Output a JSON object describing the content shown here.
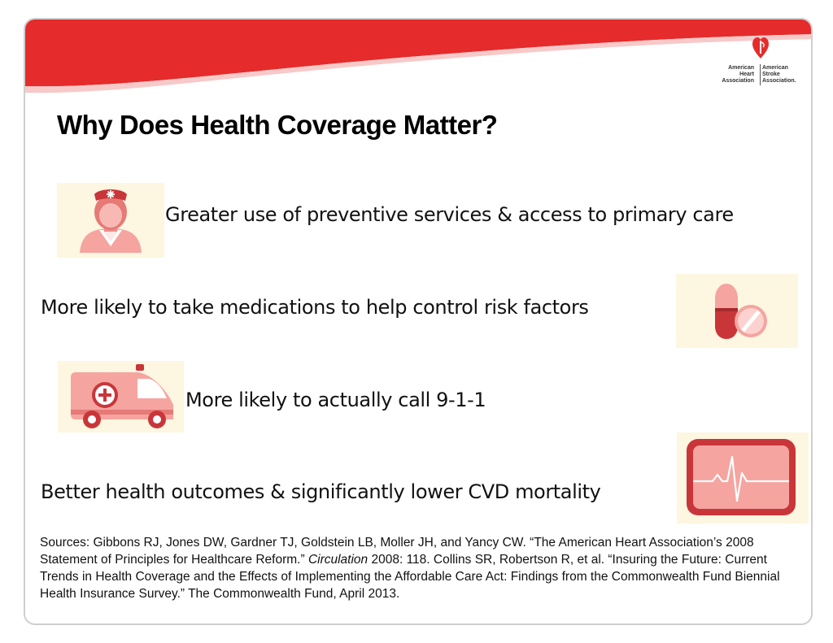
{
  "logo": {
    "left_lines": [
      "American",
      "Heart",
      "Association"
    ],
    "right_lines": [
      "American",
      "Stroke",
      "Association."
    ]
  },
  "title": "Why Does Health Coverage Matter?",
  "bullets": [
    {
      "text": "Greater use of preventive services & access to primary care",
      "icon": "nurse-icon"
    },
    {
      "text": "More likely to take medications to help control risk factors",
      "icon": "pill-icon"
    },
    {
      "text": "More likely to actually call 9-1-1",
      "icon": "ambulance-icon"
    },
    {
      "text": "Better health outcomes & significantly lower CVD mortality",
      "icon": "heart-monitor-icon"
    }
  ],
  "sources": {
    "part1": "Sources: Gibbons RJ, Jones DW, Gardner TJ, Goldstein LB, Moller JH, and Yancy CW. “The American Heart Association’s 2008 Statement of Principles for Healthcare Reform.” ",
    "journal": "Circulation",
    "part2": " 2008: 118. Collins SR, Robertson R, et al. “Insuring the Future: Current Trends in Health Coverage and the Effects of Implementing the Affordable Care Act: Findings from the Commonwealth Fund Biennial Health Insurance Survey.” The Commonwealth Fund, April 2013."
  },
  "colors": {
    "brand_red": "#e52b2b",
    "icon_pink": "#f5a4a0",
    "icon_dark_red": "#c8363a",
    "icon_bg": "#fdf6e0"
  }
}
